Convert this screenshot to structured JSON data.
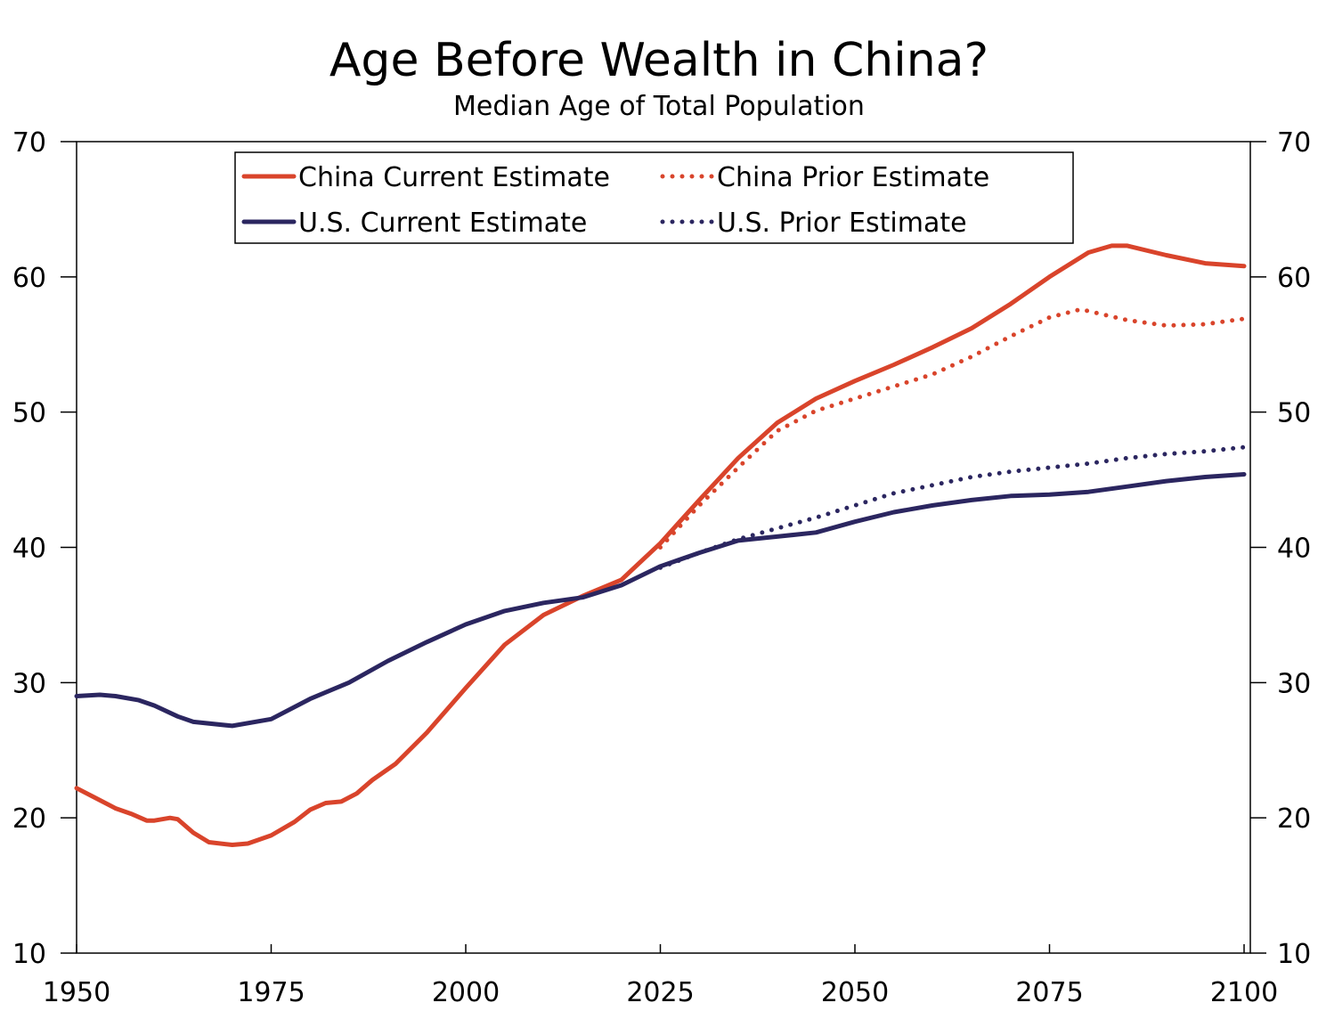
{
  "chart_data": {
    "type": "line",
    "title": "Age Before Wealth in China?",
    "subtitle": "Median Age of Total Population",
    "xlabel": "",
    "ylabel": "",
    "xlim": [
      1950,
      2100
    ],
    "ylim": [
      10,
      70
    ],
    "x_ticks": [
      "1950",
      "1975",
      "2000",
      "2025",
      "2050",
      "2075",
      "2100"
    ],
    "y_ticks_left": [
      "10",
      "20",
      "30",
      "40",
      "50",
      "60",
      "70"
    ],
    "y_ticks_right": [
      "10",
      "20",
      "30",
      "40",
      "50",
      "60",
      "70"
    ],
    "legend_position": "top-center",
    "series": [
      {
        "name": "China Current Estimate",
        "color": "#d9442b",
        "style": "solid",
        "points": [
          [
            1950,
            22.2
          ],
          [
            1952,
            21.6
          ],
          [
            1955,
            20.7
          ],
          [
            1957,
            20.3
          ],
          [
            1959,
            19.8
          ],
          [
            1960,
            19.8
          ],
          [
            1962,
            20.0
          ],
          [
            1963,
            19.9
          ],
          [
            1965,
            18.9
          ],
          [
            1967,
            18.2
          ],
          [
            1970,
            18.0
          ],
          [
            1972,
            18.1
          ],
          [
            1975,
            18.7
          ],
          [
            1978,
            19.7
          ],
          [
            1980,
            20.6
          ],
          [
            1982,
            21.1
          ],
          [
            1984,
            21.2
          ],
          [
            1986,
            21.8
          ],
          [
            1988,
            22.8
          ],
          [
            1991,
            24.0
          ],
          [
            1995,
            26.3
          ],
          [
            2000,
            29.6
          ],
          [
            2005,
            32.8
          ],
          [
            2010,
            35.0
          ],
          [
            2015,
            36.4
          ],
          [
            2020,
            37.6
          ],
          [
            2025,
            40.3
          ],
          [
            2030,
            43.5
          ],
          [
            2035,
            46.6
          ],
          [
            2040,
            49.2
          ],
          [
            2045,
            51.0
          ],
          [
            2050,
            52.3
          ],
          [
            2055,
            53.5
          ],
          [
            2060,
            54.8
          ],
          [
            2065,
            56.2
          ],
          [
            2070,
            58.0
          ],
          [
            2075,
            60.0
          ],
          [
            2080,
            61.8
          ],
          [
            2083,
            62.3
          ],
          [
            2085,
            62.3
          ],
          [
            2090,
            61.6
          ],
          [
            2095,
            61.0
          ],
          [
            2100,
            60.8
          ]
        ]
      },
      {
        "name": "China Prior Estimate",
        "color": "#d9442b",
        "style": "dotted",
        "points": [
          [
            2025,
            40.0
          ],
          [
            2030,
            43.1
          ],
          [
            2035,
            45.9
          ],
          [
            2040,
            48.6
          ],
          [
            2045,
            50.1
          ],
          [
            2050,
            51.0
          ],
          [
            2055,
            51.9
          ],
          [
            2060,
            52.8
          ],
          [
            2065,
            54.1
          ],
          [
            2070,
            55.6
          ],
          [
            2075,
            57.0
          ],
          [
            2079,
            57.6
          ],
          [
            2082,
            57.2
          ],
          [
            2085,
            56.8
          ],
          [
            2090,
            56.4
          ],
          [
            2095,
            56.5
          ],
          [
            2100,
            56.9
          ]
        ]
      },
      {
        "name": "U.S. Current Estimate",
        "color": "#2b2660",
        "style": "solid",
        "points": [
          [
            1950,
            29.0
          ],
          [
            1953,
            29.1
          ],
          [
            1955,
            29.0
          ],
          [
            1958,
            28.7
          ],
          [
            1960,
            28.3
          ],
          [
            1963,
            27.5
          ],
          [
            1965,
            27.1
          ],
          [
            1970,
            26.8
          ],
          [
            1975,
            27.3
          ],
          [
            1980,
            28.8
          ],
          [
            1985,
            30.0
          ],
          [
            1990,
            31.6
          ],
          [
            1995,
            33.0
          ],
          [
            2000,
            34.3
          ],
          [
            2005,
            35.3
          ],
          [
            2010,
            35.9
          ],
          [
            2015,
            36.3
          ],
          [
            2020,
            37.2
          ],
          [
            2025,
            38.6
          ],
          [
            2030,
            39.6
          ],
          [
            2035,
            40.5
          ],
          [
            2040,
            40.8
          ],
          [
            2045,
            41.1
          ],
          [
            2050,
            41.9
          ],
          [
            2055,
            42.6
          ],
          [
            2060,
            43.1
          ],
          [
            2065,
            43.5
          ],
          [
            2070,
            43.8
          ],
          [
            2075,
            43.9
          ],
          [
            2080,
            44.1
          ],
          [
            2085,
            44.5
          ],
          [
            2090,
            44.9
          ],
          [
            2095,
            45.2
          ],
          [
            2100,
            45.4
          ]
        ]
      },
      {
        "name": "U.S. Prior Estimate",
        "color": "#2b2660",
        "style": "dotted",
        "points": [
          [
            2025,
            38.5
          ],
          [
            2030,
            39.6
          ],
          [
            2035,
            40.6
          ],
          [
            2040,
            41.4
          ],
          [
            2045,
            42.2
          ],
          [
            2050,
            43.1
          ],
          [
            2055,
            44.0
          ],
          [
            2060,
            44.6
          ],
          [
            2065,
            45.2
          ],
          [
            2070,
            45.6
          ],
          [
            2075,
            45.9
          ],
          [
            2080,
            46.2
          ],
          [
            2085,
            46.6
          ],
          [
            2090,
            46.9
          ],
          [
            2095,
            47.1
          ],
          [
            2100,
            47.4
          ]
        ]
      }
    ]
  }
}
